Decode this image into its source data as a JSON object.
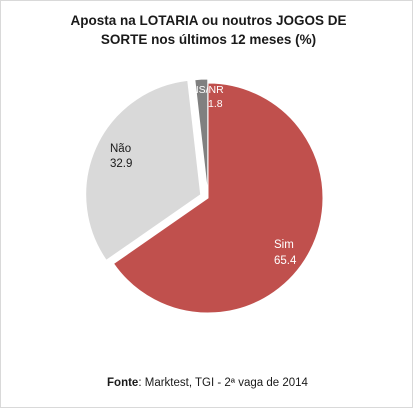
{
  "chart_data": {
    "type": "pie",
    "title_line1": "Aposta na LOTARIA ou noutros JOGOS DE",
    "title_line2": "SORTE nos últimos 12 meses (%)",
    "slices": [
      {
        "label": "Sim",
        "value": 65.4,
        "value_text": "65.4",
        "color": "#c0504d",
        "label_color": "#ffffff"
      },
      {
        "label": "Não",
        "value": 32.9,
        "value_text": "32.9",
        "color": "#d9d9d9",
        "label_color": "#1a1a1a"
      },
      {
        "label": "NS/NR",
        "value": 1.8,
        "value_text": "1.8",
        "color": "#808080",
        "label_color": "#ffffff"
      }
    ]
  },
  "source": {
    "label": "Fonte",
    "text": ": Marktest, TGI - 2ª vaga de 2014"
  }
}
